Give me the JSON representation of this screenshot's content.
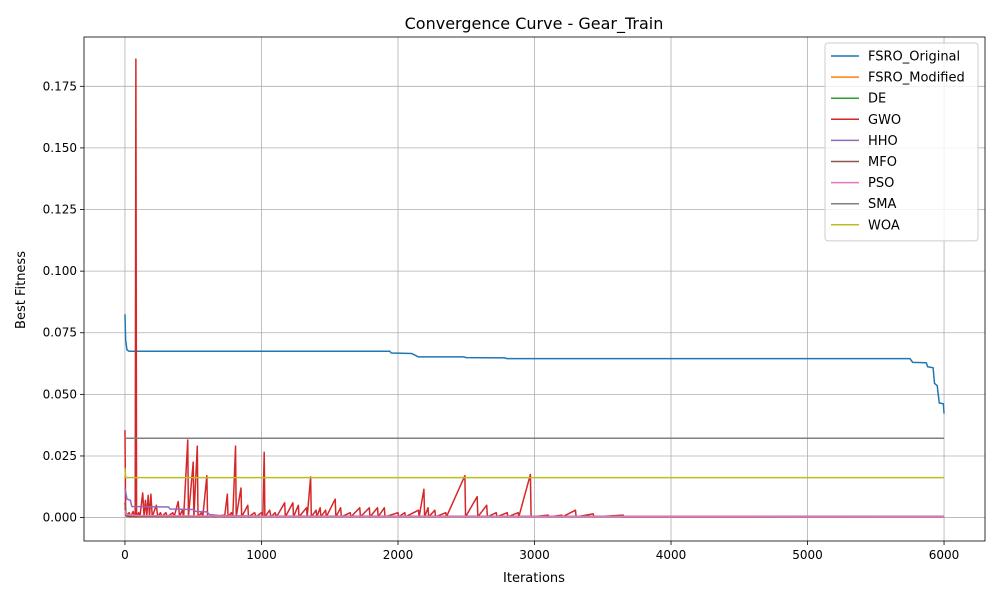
{
  "chart_data": {
    "type": "line",
    "title": "Convergence Curve - Gear_Train",
    "xlabel": "Iterations",
    "ylabel": "Best Fitness",
    "xlim": [
      -300,
      6300
    ],
    "ylim": [
      -0.0095,
      0.195
    ],
    "xticks": [
      0,
      1000,
      2000,
      3000,
      4000,
      5000,
      6000
    ],
    "xtick_labels": [
      "0",
      "1000",
      "2000",
      "3000",
      "4000",
      "5000",
      "6000"
    ],
    "yticks": [
      0.0,
      0.025,
      0.05,
      0.075,
      0.1,
      0.125,
      0.15,
      0.175
    ],
    "ytick_labels": [
      "0.000",
      "0.025",
      "0.050",
      "0.075",
      "0.100",
      "0.125",
      "0.150",
      "0.175"
    ],
    "grid": true,
    "legend_position": "top-right",
    "series": [
      {
        "name": "FSRO_Original",
        "color": "#1f77b4",
        "points": [
          [
            0,
            0.0825
          ],
          [
            5,
            0.072
          ],
          [
            15,
            0.068
          ],
          [
            30,
            0.0675
          ],
          [
            1940,
            0.0675
          ],
          [
            1950,
            0.0668
          ],
          [
            2100,
            0.0666
          ],
          [
            2150,
            0.0652
          ],
          [
            2480,
            0.0652
          ],
          [
            2500,
            0.0649
          ],
          [
            2780,
            0.0648
          ],
          [
            2800,
            0.0645
          ],
          [
            5750,
            0.0645
          ],
          [
            5770,
            0.063
          ],
          [
            5870,
            0.0628
          ],
          [
            5880,
            0.0612
          ],
          [
            5920,
            0.0608
          ],
          [
            5930,
            0.0545
          ],
          [
            5950,
            0.0535
          ],
          [
            5965,
            0.0465
          ],
          [
            5995,
            0.0462
          ],
          [
            6000,
            0.0422
          ]
        ]
      },
      {
        "name": "FSRO_Modified",
        "color": "#ff7f0e",
        "points": [
          [
            0,
            0.006
          ],
          [
            5,
            0.001
          ],
          [
            20,
            0.0004
          ],
          [
            6000,
            0.0004
          ]
        ]
      },
      {
        "name": "DE",
        "color": "#2ca02c",
        "points": [
          [
            0,
            0.004
          ],
          [
            10,
            0.0005
          ],
          [
            6000,
            0.0004
          ]
        ]
      },
      {
        "name": "GWO",
        "color": "#d62728",
        "points": [
          [
            0,
            0.0355
          ],
          [
            5,
            0.001
          ],
          [
            10,
            0.0008
          ],
          [
            30,
            0.002
          ],
          [
            40,
            0.0003
          ],
          [
            60,
            0.0025
          ],
          [
            70,
            0.0004
          ],
          [
            75,
            0.0015
          ],
          [
            80,
            0.186
          ],
          [
            85,
            0.0003
          ],
          [
            100,
            0.002
          ],
          [
            110,
            0.0005
          ],
          [
            130,
            0.01
          ],
          [
            140,
            0.0004
          ],
          [
            150,
            0.007
          ],
          [
            160,
            0.0005
          ],
          [
            170,
            0.009
          ],
          [
            180,
            0.0004
          ],
          [
            190,
            0.0095
          ],
          [
            200,
            0.0004
          ],
          [
            230,
            0.005
          ],
          [
            240,
            0.0003
          ],
          [
            260,
            0.002
          ],
          [
            270,
            0.0004
          ],
          [
            300,
            0.002
          ],
          [
            310,
            0.0003
          ],
          [
            350,
            0.002
          ],
          [
            360,
            0.0003
          ],
          [
            390,
            0.0065
          ],
          [
            400,
            0.0004
          ],
          [
            420,
            0.003
          ],
          [
            430,
            0.0003
          ],
          [
            460,
            0.0315
          ],
          [
            465,
            0.0003
          ],
          [
            500,
            0.0225
          ],
          [
            505,
            0.0003
          ],
          [
            530,
            0.029
          ],
          [
            535,
            0.0003
          ],
          [
            560,
            0.002
          ],
          [
            570,
            0.0003
          ],
          [
            600,
            0.017
          ],
          [
            605,
            0.0003
          ],
          [
            650,
            0.001
          ],
          [
            660,
            0.0003
          ],
          [
            720,
            0.001
          ],
          [
            730,
            0.0003
          ],
          [
            750,
            0.0095
          ],
          [
            755,
            0.0003
          ],
          [
            780,
            0.002
          ],
          [
            790,
            0.0003
          ],
          [
            810,
            0.029
          ],
          [
            815,
            0.0003
          ],
          [
            850,
            0.012
          ],
          [
            855,
            0.0003
          ],
          [
            900,
            0.005
          ],
          [
            905,
            0.0003
          ],
          [
            950,
            0.002
          ],
          [
            960,
            0.0003
          ],
          [
            1000,
            0.002
          ],
          [
            1010,
            0.0003
          ],
          [
            1020,
            0.0265
          ],
          [
            1025,
            0.0003
          ],
          [
            1060,
            0.003
          ],
          [
            1070,
            0.0003
          ],
          [
            1100,
            0.002
          ],
          [
            1110,
            0.0003
          ],
          [
            1170,
            0.006
          ],
          [
            1175,
            0.0003
          ],
          [
            1230,
            0.006
          ],
          [
            1235,
            0.0003
          ],
          [
            1270,
            0.005
          ],
          [
            1275,
            0.0003
          ],
          [
            1330,
            0.004
          ],
          [
            1335,
            0.0003
          ],
          [
            1360,
            0.0165
          ],
          [
            1365,
            0.0003
          ],
          [
            1400,
            0.003
          ],
          [
            1405,
            0.0003
          ],
          [
            1430,
            0.004
          ],
          [
            1435,
            0.0003
          ],
          [
            1470,
            0.003
          ],
          [
            1475,
            0.0003
          ],
          [
            1540,
            0.0075
          ],
          [
            1545,
            0.0003
          ],
          [
            1580,
            0.004
          ],
          [
            1585,
            0.0003
          ],
          [
            1650,
            0.002
          ],
          [
            1655,
            0.0003
          ],
          [
            1720,
            0.004
          ],
          [
            1725,
            0.0003
          ],
          [
            1790,
            0.004
          ],
          [
            1795,
            0.0003
          ],
          [
            1850,
            0.004
          ],
          [
            1855,
            0.0003
          ],
          [
            1900,
            0.004
          ],
          [
            1905,
            0.0003
          ],
          [
            2000,
            0.002
          ],
          [
            2005,
            0.0003
          ],
          [
            2050,
            0.002
          ],
          [
            2055,
            0.0003
          ],
          [
            2150,
            0.003
          ],
          [
            2155,
            0.0003
          ],
          [
            2190,
            0.0115
          ],
          [
            2195,
            0.0003
          ],
          [
            2220,
            0.004
          ],
          [
            2225,
            0.0003
          ],
          [
            2270,
            0.003
          ],
          [
            2275,
            0.0003
          ],
          [
            2350,
            0.002
          ],
          [
            2355,
            0.0003
          ],
          [
            2490,
            0.017
          ],
          [
            2495,
            0.0003
          ],
          [
            2580,
            0.0085
          ],
          [
            2585,
            0.0003
          ],
          [
            2650,
            0.005
          ],
          [
            2655,
            0.0003
          ],
          [
            2720,
            0.002
          ],
          [
            2725,
            0.0003
          ],
          [
            2800,
            0.002
          ],
          [
            2805,
            0.0003
          ],
          [
            2880,
            0.002
          ],
          [
            2885,
            0.0003
          ],
          [
            2970,
            0.0175
          ],
          [
            2975,
            0.0003
          ],
          [
            3100,
            0.001
          ],
          [
            3105,
            0.0003
          ],
          [
            3200,
            0.001
          ],
          [
            3205,
            0.0003
          ],
          [
            3300,
            0.003
          ],
          [
            3305,
            0.0003
          ],
          [
            3430,
            0.0015
          ],
          [
            3435,
            0.0003
          ],
          [
            3650,
            0.001
          ],
          [
            3655,
            0.0003
          ],
          [
            6000,
            0.0003
          ]
        ]
      },
      {
        "name": "HHO",
        "color": "#9467bd",
        "points": [
          [
            0,
            0.012
          ],
          [
            15,
            0.0075
          ],
          [
            40,
            0.007
          ],
          [
            50,
            0.0045
          ],
          [
            320,
            0.0043
          ],
          [
            330,
            0.0035
          ],
          [
            500,
            0.0033
          ],
          [
            520,
            0.0025
          ],
          [
            600,
            0.0023
          ],
          [
            620,
            0.0012
          ],
          [
            700,
            0.0008
          ],
          [
            1000,
            0.0006
          ],
          [
            6000,
            0.0005
          ]
        ]
      },
      {
        "name": "MFO",
        "color": "#8c564b",
        "points": [
          [
            0,
            0.006
          ],
          [
            10,
            0.001
          ],
          [
            30,
            0.0004
          ],
          [
            6000,
            0.0004
          ]
        ]
      },
      {
        "name": "PSO",
        "color": "#e377c2",
        "points": [
          [
            0,
            0.003
          ],
          [
            10,
            0.0012
          ],
          [
            100,
            0.0008
          ],
          [
            1000,
            0.0005
          ],
          [
            6000,
            0.0004
          ]
        ]
      },
      {
        "name": "SMA",
        "color": "#7f7f7f",
        "points": [
          [
            0,
            0.0322
          ],
          [
            6000,
            0.0322
          ]
        ]
      },
      {
        "name": "WOA",
        "color": "#bcbd22",
        "points": [
          [
            0,
            0.0202
          ],
          [
            5,
            0.0162
          ],
          [
            6000,
            0.0162
          ]
        ]
      }
    ]
  }
}
